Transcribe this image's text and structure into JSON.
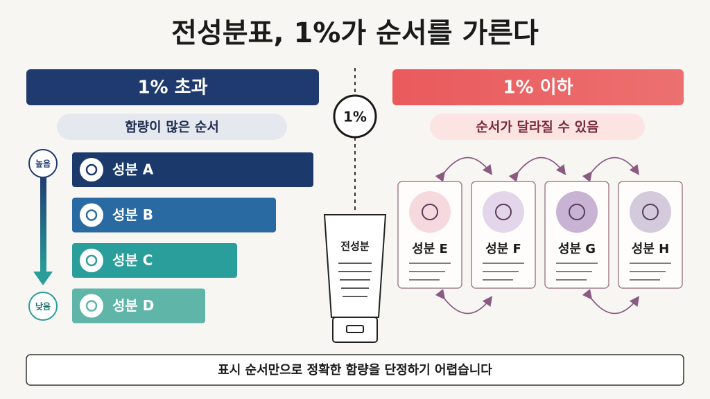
{
  "title": "전성분표, 1%가 순서를 가른다",
  "center_label": "1%",
  "tube_label": "전성분",
  "left": {
    "header": "1% 초과",
    "subtitle": "함량이 많은 순서",
    "high_label": "높음",
    "low_label": "낮음",
    "items": [
      "성분 A",
      "성분 B",
      "성분 C",
      "성분 D"
    ]
  },
  "right": {
    "header": "1% 이하",
    "subtitle": "순서가 달라질 수 있음",
    "items": [
      "성분 E",
      "성분 F",
      "성분 G",
      "성분 H"
    ]
  },
  "footer": "표시 순서만으로 정확한 함량을 단정하기 어렵습니다"
}
